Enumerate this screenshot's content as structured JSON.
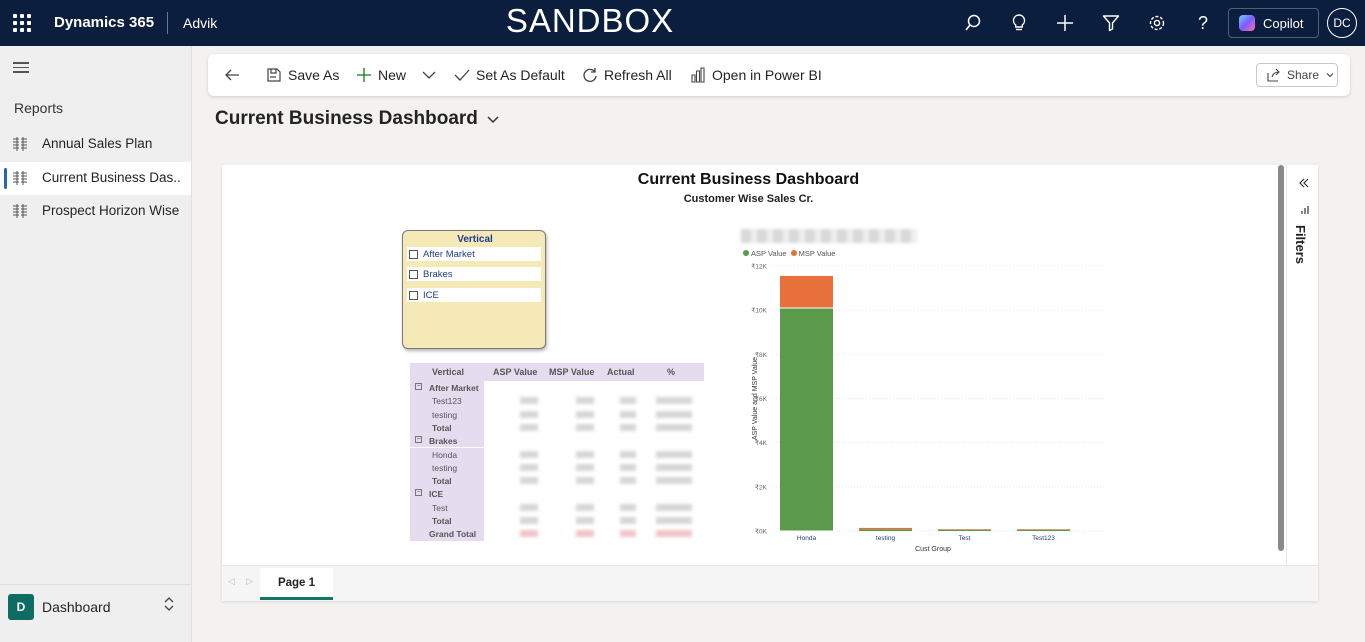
{
  "topbar": {
    "brand": "Dynamics 365",
    "app_name": "Advik",
    "environment": "SANDBOX",
    "copilot_label": "Copilot",
    "user_initials": "DC",
    "icons": [
      "search-icon",
      "lightbulb-icon",
      "plus-icon",
      "filter-icon",
      "gear-icon",
      "help-icon"
    ]
  },
  "sidebar": {
    "section_title": "Reports",
    "items": [
      {
        "label": "Annual Sales Plan",
        "active": false
      },
      {
        "label": "Current Business Das...",
        "active": true
      },
      {
        "label": "Prospect Horizon Wise",
        "active": false
      }
    ],
    "area": {
      "badge": "D",
      "label": "Dashboard"
    }
  },
  "commandbar": {
    "save_as": "Save As",
    "new": "New",
    "set_default": "Set As Default",
    "refresh_all": "Refresh All",
    "open_power_bi": "Open in Power BI",
    "share": "Share"
  },
  "page": {
    "title": "Current Business Dashboard"
  },
  "report": {
    "title": "Current Business Dashboard",
    "subtitle": "Customer Wise Sales Cr.",
    "filters_label": "Filters",
    "slicer": {
      "header": "Vertical",
      "options": [
        "After Market",
        "Brakes",
        "ICE"
      ]
    },
    "matrix": {
      "columns": [
        "Vertical",
        "ASP Value",
        "MSP Value",
        "Actual",
        "%"
      ],
      "rows": [
        {
          "label": "After Market",
          "type": "group"
        },
        {
          "label": "Test123",
          "type": "item"
        },
        {
          "label": "testing",
          "type": "item"
        },
        {
          "label": "Total",
          "type": "total"
        },
        {
          "label": "Brakes",
          "type": "group"
        },
        {
          "label": "Honda",
          "type": "item"
        },
        {
          "label": "testing",
          "type": "item"
        },
        {
          "label": "Total",
          "type": "total"
        },
        {
          "label": "ICE",
          "type": "group"
        },
        {
          "label": "Test",
          "type": "item"
        },
        {
          "label": "Total",
          "type": "total"
        },
        {
          "label": "Grand Total",
          "type": "grand"
        }
      ]
    },
    "tabs": [
      "Page 1"
    ]
  },
  "chart_data": {
    "type": "bar",
    "stacked": true,
    "categories": [
      "Honda",
      "testing",
      "Test",
      "Test123"
    ],
    "series": [
      {
        "name": "ASP Value",
        "color": "#5b9a4a",
        "values": [
          10100,
          80,
          60,
          60
        ]
      },
      {
        "name": "MSP Value",
        "color": "#e8703a",
        "values": [
          1450,
          60,
          20,
          20
        ]
      }
    ],
    "xlabel": "Cust Group",
    "ylabel": "ASP Value and MSP Value",
    "ylim": [
      0,
      12000
    ],
    "yticks": [
      "₹12K",
      "₹10K",
      "₹8K",
      "₹6K",
      "₹4K",
      "₹2K",
      "₹0K"
    ],
    "grid": true,
    "legend_position": "top-left"
  }
}
